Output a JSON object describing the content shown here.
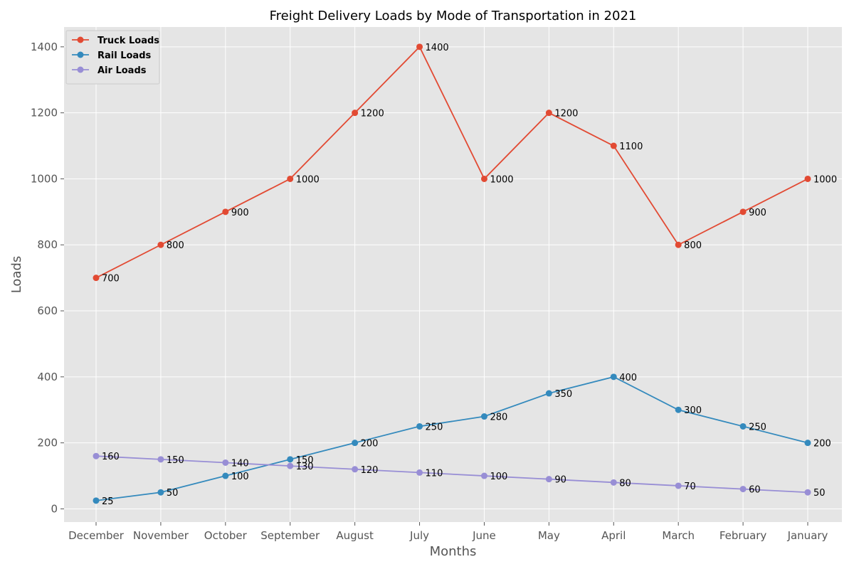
{
  "chart_data": {
    "type": "line",
    "title": "Freight Delivery Loads by Mode of Transportation in 2021",
    "xlabel": "Months",
    "ylabel": "Loads",
    "categories": [
      "December",
      "November",
      "October",
      "September",
      "August",
      "July",
      "June",
      "May",
      "April",
      "March",
      "February",
      "January"
    ],
    "ylim": [
      -40,
      1460
    ],
    "yticks": [
      0,
      200,
      400,
      600,
      800,
      1000,
      1200,
      1400
    ],
    "grid": true,
    "legend_position": "top-left",
    "series": [
      {
        "name": "Truck Loads",
        "color": "#e24a33",
        "values": [
          700,
          800,
          900,
          1000,
          1200,
          1400,
          1000,
          1200,
          1100,
          800,
          900,
          1000
        ]
      },
      {
        "name": "Rail Loads",
        "color": "#348abd",
        "values": [
          25,
          50,
          100,
          150,
          200,
          250,
          280,
          350,
          400,
          300,
          250,
          200
        ]
      },
      {
        "name": "Air Loads",
        "color": "#988ed5",
        "values": [
          160,
          150,
          140,
          130,
          120,
          110,
          100,
          90,
          80,
          70,
          60,
          50
        ]
      }
    ]
  }
}
